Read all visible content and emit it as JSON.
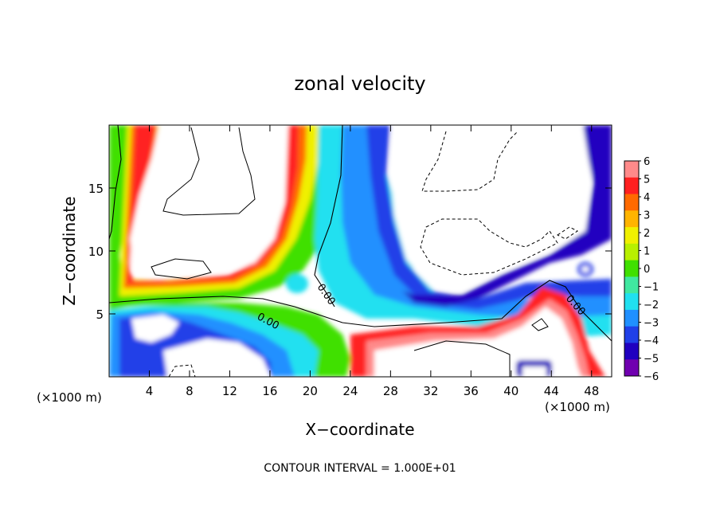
{
  "chart_data": {
    "type": "heatmap",
    "title": "zonal velocity",
    "xlabel": "X−coordinate",
    "ylabel": "Z−coordinate",
    "x_unit_left": "(×1000 m)",
    "x_unit_right": "(×1000 m)",
    "xlim": [
      0,
      50
    ],
    "ylim": [
      0,
      20
    ],
    "x_ticks": [
      "4",
      "8",
      "12",
      "16",
      "20",
      "24",
      "28",
      "32",
      "36",
      "40",
      "44",
      "48"
    ],
    "x_tick_values": [
      4,
      8,
      12,
      16,
      20,
      24,
      28,
      32,
      36,
      40,
      44,
      48
    ],
    "y_ticks": [
      "5",
      "10",
      "15"
    ],
    "y_tick_values": [
      5,
      10,
      15
    ],
    "colorbar": {
      "labels": [
        "6",
        "5",
        "4",
        "3",
        "2",
        "1",
        "0",
        "−1",
        "−2",
        "−3",
        "−4",
        "−5",
        "−6"
      ],
      "values": [
        6,
        5,
        4,
        3,
        2,
        1,
        0,
        -1,
        -2,
        -3,
        -4,
        -5,
        -6
      ],
      "colors": [
        "#ff8a8a",
        "#ff2020",
        "#ff6a00",
        "#ffb400",
        "#f0f000",
        "#b8f000",
        "#40e000",
        "#40e8a0",
        "#20e0f0",
        "#2090ff",
        "#2040e8",
        "#2000c0",
        "#7000b0"
      ],
      "range": [
        -6,
        6
      ]
    },
    "contour_labels": [
      "0.00",
      "0.00",
      "0.00"
    ],
    "contour_interval_text": "CONTOUR INTERVAL = 1.000E+01",
    "grid": false
  }
}
